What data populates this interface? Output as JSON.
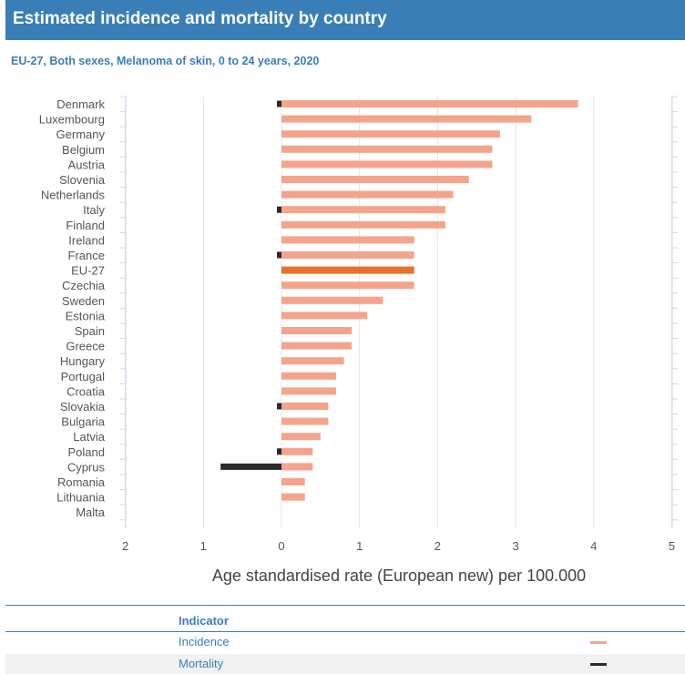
{
  "header": {
    "title": "Estimated incidence and mortality by country"
  },
  "subtitle": "EU-27, Both sexes, Melanoma of skin, 0 to 24 years, 2020",
  "chart_data": {
    "type": "bar",
    "orientation": "horizontal",
    "categories": [
      "Denmark",
      "Luxembourg",
      "Germany",
      "Belgium",
      "Austria",
      "Slovenia",
      "Netherlands",
      "Italy",
      "Finland",
      "Ireland",
      "France",
      "EU-27",
      "Czechia",
      "Sweden",
      "Estonia",
      "Spain",
      "Greece",
      "Hungary",
      "Portugal",
      "Croatia",
      "Slovakia",
      "Bulgaria",
      "Latvia",
      "Poland",
      "Cyprus",
      "Romania",
      "Lithuania",
      "Malta"
    ],
    "series": [
      {
        "name": "Incidence",
        "color": "#f4a48c",
        "highlight_color": "#e8702a",
        "highlight_category": "EU-27",
        "values": [
          3.8,
          3.2,
          2.8,
          2.7,
          2.7,
          2.4,
          2.2,
          2.1,
          2.1,
          1.7,
          1.7,
          1.7,
          1.7,
          1.3,
          1.1,
          0.9,
          0.9,
          0.8,
          0.7,
          0.7,
          0.6,
          0.6,
          0.5,
          0.4,
          0.4,
          0.3,
          0.3,
          0
        ]
      },
      {
        "name": "Mortality",
        "color": "#2b2b2b",
        "values": [
          0.05,
          0,
          0,
          0,
          0,
          0,
          0,
          0.05,
          0,
          0,
          0.05,
          0,
          0,
          0,
          0,
          0,
          0,
          0,
          0,
          0,
          0.05,
          0,
          0,
          0.05,
          0.78,
          0,
          0,
          0
        ]
      }
    ],
    "xticks": [
      "2",
      "1",
      "0",
      "1",
      "2",
      "3",
      "4",
      "5"
    ],
    "xlim": [
      -2,
      5
    ],
    "xlabel": "Age standardised rate (European new) per 100.000",
    "grid": true
  },
  "legend": {
    "header": "Indicator",
    "items": [
      {
        "label": "Incidence",
        "color": "#f4a48c"
      },
      {
        "label": "Mortality",
        "color": "#2b2b2b"
      }
    ]
  }
}
